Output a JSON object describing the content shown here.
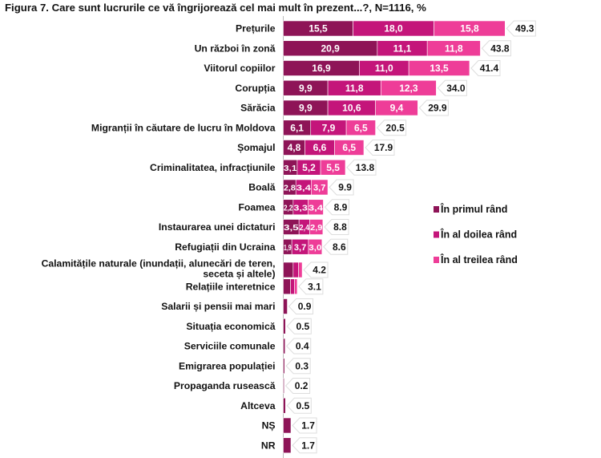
{
  "chart_data": {
    "type": "bar",
    "orientation": "horizontal",
    "stacked": true,
    "title": "Figura 7. Care sunt lucrurile ce vă îngrijorează cel mai mult în prezent...?, N=1116, %",
    "categories": [
      "Prețurile",
      "Un război în zonă",
      "Viitorul copiilor",
      "Corupția",
      "Sărăcia",
      "Migranții în căutare de lucru în Moldova",
      "Șomajul",
      "Criminalitatea, infracțiunile",
      "Boală",
      "Foamea",
      "Instaurarea unei dictaturi",
      "Refugiații din Ucraina",
      "Calamitățile naturale (inundații, alunecări de teren, seceta și altele)",
      "Relațiile interetnice",
      "Salarii și pensii mai mari",
      "Situația economică",
      "Serviciile comunale",
      "Emigrarea populației",
      "Propaganda rusească",
      "Altceva",
      "NȘ",
      "NR"
    ],
    "series": [
      {
        "name": "În primul rând",
        "color": "#8e1457",
        "values": [
          15.5,
          20.9,
          16.9,
          9.9,
          9.9,
          6.1,
          4.8,
          3.1,
          2.8,
          2.2,
          3.5,
          1.9,
          2.2,
          1.6,
          0.9,
          0.5,
          0.4,
          0.3,
          0.2,
          0.5,
          1.7,
          1.7
        ],
        "labels": [
          "15,5",
          "20,9",
          "16,9",
          "9,9",
          "9,9",
          "6,1",
          "4,8",
          "3,1",
          "2,8",
          "2,2",
          "3,5",
          "1,9",
          "",
          "",
          "",
          "",
          "",
          "",
          "",
          "",
          "",
          ""
        ]
      },
      {
        "name": "În al doilea rând",
        "color": "#c4157a",
        "values": [
          18.0,
          11.1,
          11.0,
          11.8,
          10.6,
          7.9,
          6.6,
          5.2,
          3.4,
          3.3,
          2.4,
          3.7,
          1.2,
          0.9,
          0,
          0,
          0,
          0,
          0,
          0,
          0,
          0
        ],
        "labels": [
          "18,0",
          "11,1",
          "11,0",
          "11,8",
          "10,6",
          "7,9",
          "6,6",
          "5,2",
          "3,4",
          "3,3",
          "2,4",
          "3,7",
          "",
          "",
          "",
          "",
          "",
          "",
          "",
          "",
          "",
          ""
        ]
      },
      {
        "name": "În al treilea rând",
        "color": "#ee3d98",
        "values": [
          15.8,
          11.8,
          13.5,
          12.3,
          9.4,
          6.5,
          6.5,
          5.5,
          3.7,
          3.4,
          2.9,
          3.0,
          0.8,
          0.6,
          0,
          0,
          0,
          0,
          0,
          0,
          0,
          0
        ],
        "labels": [
          "15,8",
          "11,8",
          "13,5",
          "12,3",
          "9,4",
          "6,5",
          "6,5",
          "5,5",
          "3,7",
          "3,4",
          "2,9",
          "3,0",
          "",
          "",
          "",
          "",
          "",
          "",
          "",
          "",
          "",
          ""
        ]
      }
    ],
    "totals": [
      "49.3",
      "43.8",
      "41.4",
      "34.0",
      "29.9",
      "20.5",
      "17.9",
      "13.8",
      "9.9",
      "8.9",
      "8.8",
      "8.6",
      "4.2",
      "3.1",
      "0.9",
      "0.5",
      "0.4",
      "0.3",
      "0.2",
      "0.5",
      "1.7",
      "1.7"
    ],
    "legend": {
      "position": "right",
      "entries": [
        "În primul rând",
        "În al doilea rând",
        "În al treilea rând"
      ]
    },
    "xlim": [
      0,
      50
    ],
    "grid": false
  }
}
